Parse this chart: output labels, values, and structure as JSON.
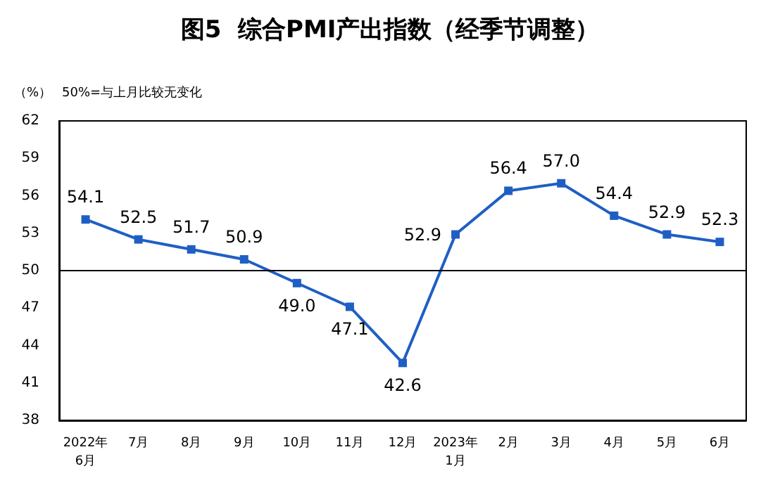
{
  "chart_data": {
    "type": "line",
    "title": "图5  综合PMI产出指数（经季节调整）",
    "annotations": [
      "（%）",
      "50%=与上月比较无变化"
    ],
    "categories": [
      "2022年\n6月",
      "7月",
      "8月",
      "9月",
      "10月",
      "11月",
      "12月",
      "2023年\n1月",
      "2月",
      "3月",
      "4月",
      "5月",
      "6月"
    ],
    "series": [
      {
        "color": "#1f5fc4",
        "values": [
          54.1,
          52.5,
          51.7,
          50.9,
          49.0,
          47.1,
          42.6,
          52.9,
          56.4,
          57.0,
          54.4,
          52.9,
          52.3
        ]
      }
    ],
    "ylim": [
      38,
      62
    ],
    "yticks": [
      38,
      41,
      44,
      47,
      50,
      53,
      56,
      59,
      62
    ],
    "ref_lines": [
      {
        "axis": "y",
        "value": 50,
        "color": "#000000"
      }
    ],
    "value_labels": [
      "54.1",
      "52.5",
      "51.7",
      "50.9",
      "49.0",
      "47.1",
      "42.6",
      "52.9",
      "56.4",
      "57.0",
      "54.4",
      "52.9",
      "52.3"
    ],
    "marker": "square"
  }
}
